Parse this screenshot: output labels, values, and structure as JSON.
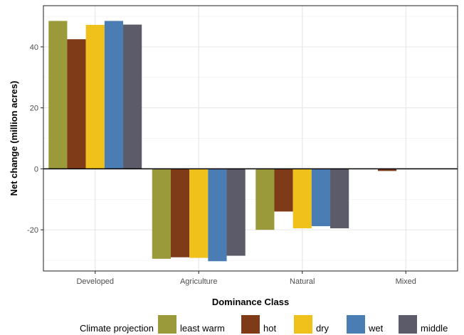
{
  "chart_data": {
    "type": "bar",
    "xlabel": "Dominance Class",
    "ylabel": "Net change (million acres)",
    "categories": [
      "Developed",
      "Agriculture",
      "Natural",
      "Mixed"
    ],
    "series": [
      {
        "name": "least warm",
        "color": "#9b9a3a",
        "values": [
          48.5,
          -29.5,
          -20.0,
          0.0
        ]
      },
      {
        "name": "hot",
        "color": "#7f3b17",
        "values": [
          42.5,
          -29.0,
          -14.0,
          -0.7
        ]
      },
      {
        "name": "dry",
        "color": "#f0c01b",
        "values": [
          47.2,
          -29.2,
          -19.5,
          0.0
        ]
      },
      {
        "name": "wet",
        "color": "#4a7db3",
        "values": [
          48.5,
          -30.3,
          -18.8,
          0.0
        ]
      },
      {
        "name": "middle",
        "color": "#5c5b69",
        "values": [
          47.3,
          -28.5,
          -19.5,
          0.0
        ]
      }
    ],
    "yticks": [
      40,
      20,
      0,
      -20
    ],
    "ytick_labels": [
      "40",
      "20",
      "0",
      "-20"
    ],
    "ylim": [
      -33.5,
      53.5
    ],
    "grid": true,
    "legend": {
      "title": "Climate projection",
      "position": "bottom"
    }
  }
}
